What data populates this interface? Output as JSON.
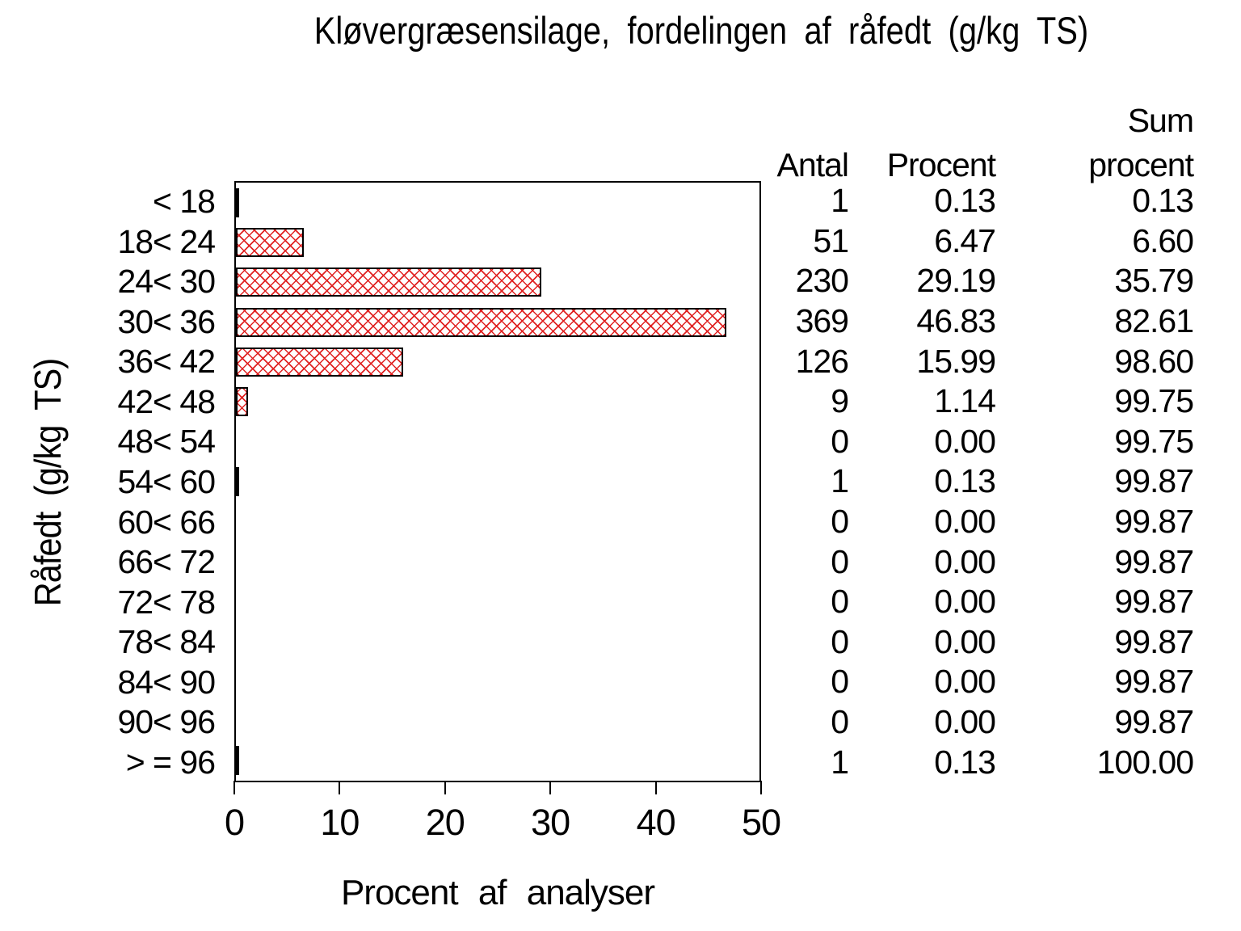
{
  "chart_data": {
    "type": "bar",
    "orientation": "horizontal",
    "title": "Kløvergræsensilage,  fordelingen  af  råfedt  (g/kg  TS)",
    "xlabel": "Procent  af  analyser",
    "ylabel": "Råfedt  (g/kg  TS)",
    "xlim": [
      0,
      50
    ],
    "x_ticks": [
      0,
      10,
      20,
      30,
      40,
      50
    ],
    "grid": false,
    "frame": true,
    "categories": [
      "< 18",
      "18< 24",
      "24< 30",
      "30< 36",
      "36< 42",
      "42< 48",
      "48< 54",
      "54< 60",
      "60< 66",
      "66< 72",
      "72< 78",
      "78< 84",
      "84< 90",
      "90< 96",
      "> = 96"
    ],
    "values": [
      0.13,
      6.47,
      29.19,
      46.83,
      15.99,
      1.14,
      0.0,
      0.13,
      0.0,
      0.0,
      0.0,
      0.0,
      0.0,
      0.0,
      0.13
    ],
    "bar_style": {
      "pattern": "crosshatch",
      "color": "#e02222",
      "border": "#000000"
    }
  },
  "table": {
    "headers": {
      "antal": "Antal",
      "procent": "Procent",
      "sum_line1": "Sum",
      "sum_line2": "procent"
    },
    "rows": [
      {
        "antal": "1",
        "procent": "0.13",
        "sum": "0.13"
      },
      {
        "antal": "51",
        "procent": "6.47",
        "sum": "6.60"
      },
      {
        "antal": "230",
        "procent": "29.19",
        "sum": "35.79"
      },
      {
        "antal": "369",
        "procent": "46.83",
        "sum": "82.61"
      },
      {
        "antal": "126",
        "procent": "15.99",
        "sum": "98.60"
      },
      {
        "antal": "9",
        "procent": "1.14",
        "sum": "99.75"
      },
      {
        "antal": "0",
        "procent": "0.00",
        "sum": "99.75"
      },
      {
        "antal": "1",
        "procent": "0.13",
        "sum": "99.87"
      },
      {
        "antal": "0",
        "procent": "0.00",
        "sum": "99.87"
      },
      {
        "antal": "0",
        "procent": "0.00",
        "sum": "99.87"
      },
      {
        "antal": "0",
        "procent": "0.00",
        "sum": "99.87"
      },
      {
        "antal": "0",
        "procent": "0.00",
        "sum": "99.87"
      },
      {
        "antal": "0",
        "procent": "0.00",
        "sum": "99.87"
      },
      {
        "antal": "0",
        "procent": "0.00",
        "sum": "99.87"
      },
      {
        "antal": "1",
        "procent": "0.13",
        "sum": "100.00"
      }
    ]
  }
}
